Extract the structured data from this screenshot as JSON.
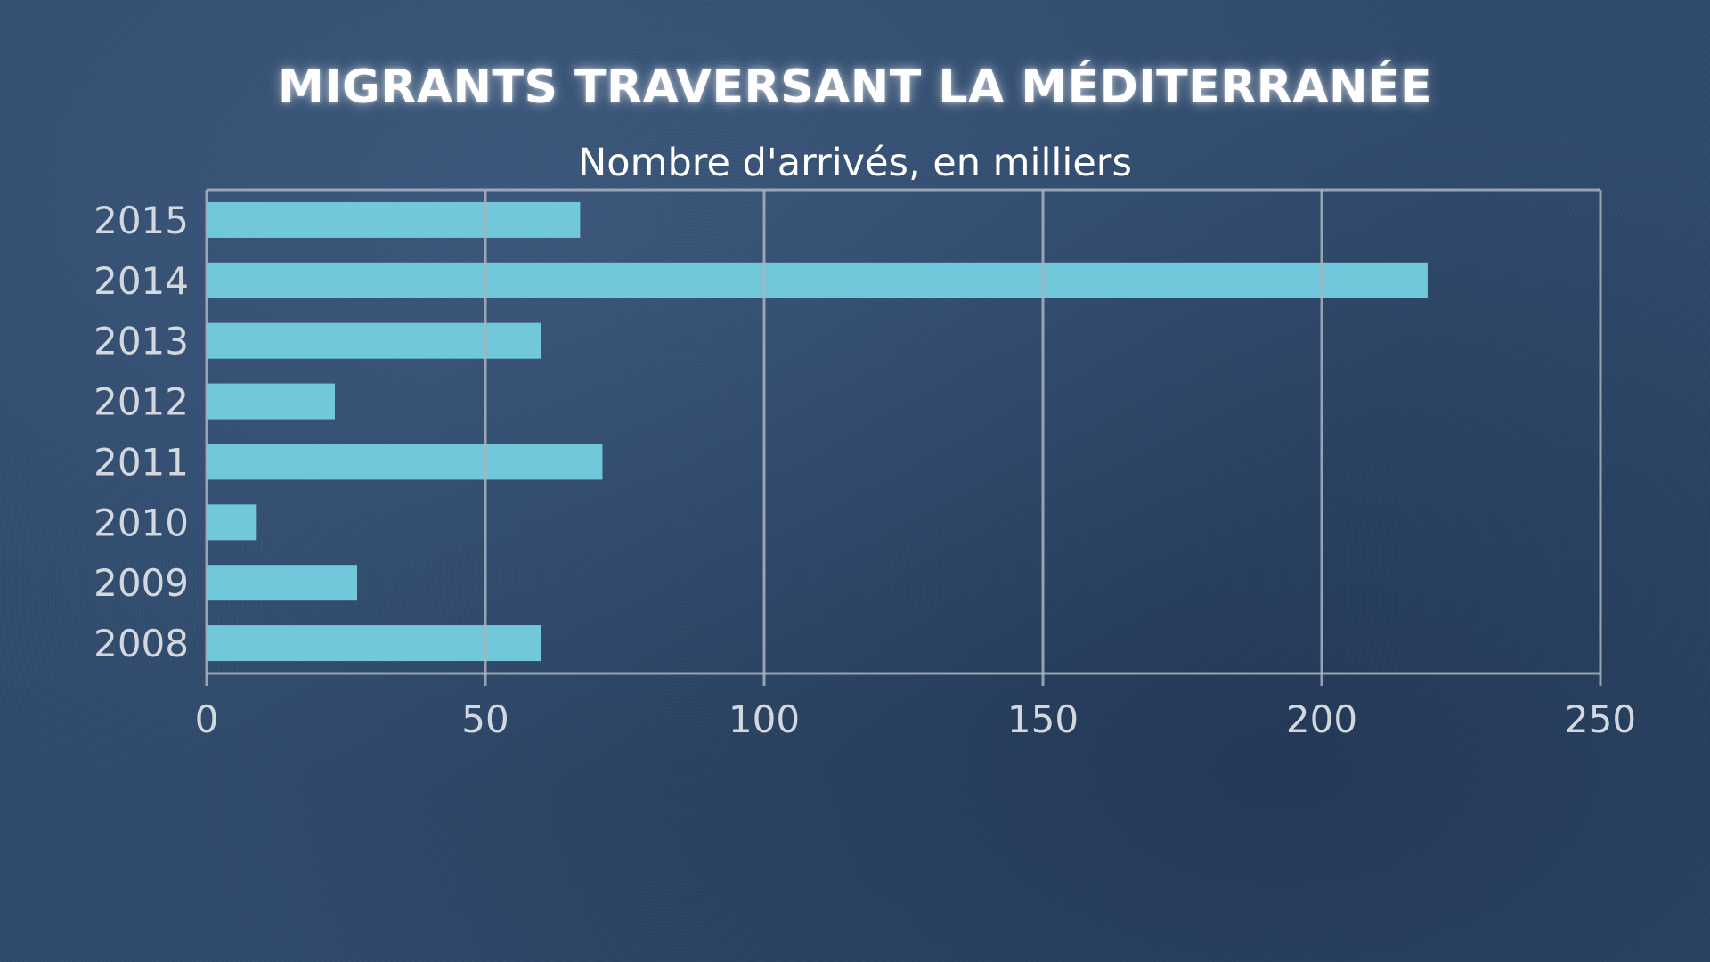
{
  "chart_data": {
    "type": "bar",
    "orientation": "horizontal",
    "title": "MIGRANTS TRAVERSANT LA MÉDITERRANÉE",
    "subtitle": "Nombre d'arrivés, en milliers",
    "categories": [
      "2015",
      "2014",
      "2013",
      "2012",
      "2011",
      "2010",
      "2009",
      "2008"
    ],
    "values": [
      67,
      219,
      60,
      23,
      71,
      9,
      27,
      60
    ],
    "xlim": [
      0,
      250
    ],
    "xticks": [
      0,
      50,
      100,
      150,
      200,
      250
    ],
    "grid": true,
    "bar_color": "#71c8da",
    "grid_color": "#a9b4c2",
    "text_color": "#d3d8df"
  }
}
